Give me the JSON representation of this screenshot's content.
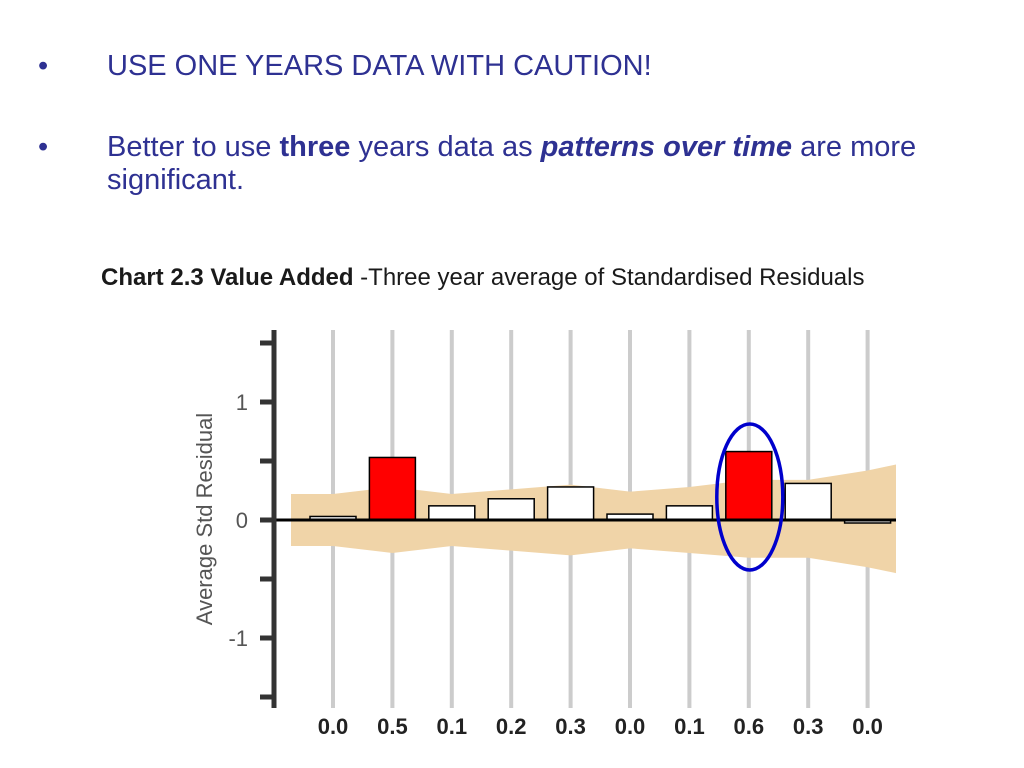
{
  "bullets": {
    "symbol": "•",
    "b1": {
      "text": "USE ONE YEARS DATA WITH CAUTION!"
    },
    "b2": {
      "pre": "Better to use ",
      "bold": "three",
      "mid": " years data as ",
      "bold_italic": "patterns over time",
      "post": " are more significant."
    }
  },
  "chart_title": {
    "bold": "Chart 2.3 Value Added",
    "rest": " -Three year average of Standardised Residuals"
  },
  "chart_data": {
    "type": "bar",
    "title": "Chart 2.3 Value Added -Three year average of Standardised Residuals",
    "ylabel": "Average Std Residual",
    "xlabel": "",
    "ylim": [
      -1.5,
      1.6
    ],
    "yticks": [
      1,
      0,
      -1
    ],
    "ytick_labels": [
      "1",
      "0",
      "-1"
    ],
    "grid": "vertical",
    "categories": [
      "0.0",
      "0.5",
      "0.1",
      "0.2",
      "0.3",
      "0.0",
      "0.1",
      "0.6",
      "0.3",
      "0.0"
    ],
    "values": [
      0.03,
      0.53,
      0.12,
      0.18,
      0.28,
      0.05,
      0.12,
      0.58,
      0.31,
      0.0
    ],
    "significant": [
      false,
      true,
      false,
      false,
      false,
      false,
      false,
      true,
      false,
      false
    ],
    "band_upper": [
      0.22,
      0.28,
      0.22,
      0.26,
      0.3,
      0.24,
      0.28,
      0.34,
      0.34,
      0.42
    ],
    "band_lower": [
      -0.22,
      -0.28,
      -0.22,
      -0.26,
      -0.3,
      -0.24,
      -0.28,
      -0.32,
      -0.32,
      -0.4
    ],
    "highlight_index": 7,
    "colors": {
      "significant": "#ff0000",
      "normal": "#ffffff",
      "band": "#f0d4a8",
      "grid": "#cccccc",
      "highlight": "#0000cc",
      "axis": "#333333"
    }
  }
}
